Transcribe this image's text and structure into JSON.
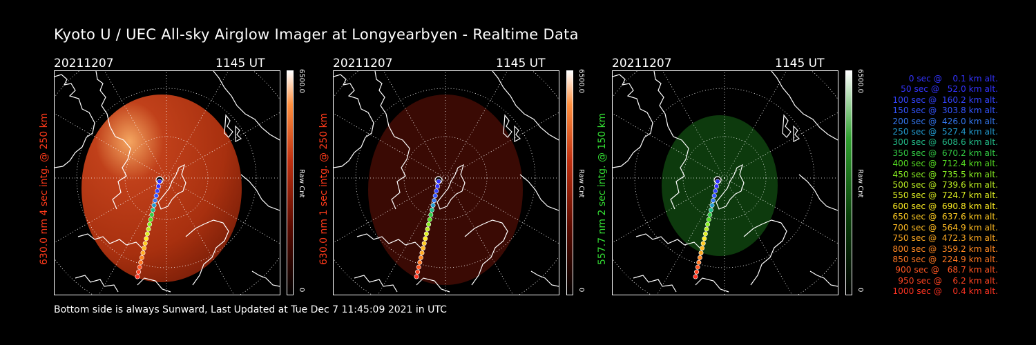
{
  "title": "Kyoto U / UEC All-sky Airglow Imager at Longyearbyen - Realtime Data",
  "panels": [
    {
      "date": "20211207",
      "time": "1145 UT",
      "label": "630.0 nm 4 sec intg. @ 250 km",
      "label_color": "#ff3a1a",
      "cbar_max": "6500.0",
      "cbar_unit": "Raw Cnt",
      "cbar_min": "0",
      "tint": "red"
    },
    {
      "date": "20211207",
      "time": "1145 UT",
      "label": "630.0 nm 1 sec intg. @ 250 km",
      "label_color": "#ff3a1a",
      "cbar_max": "6500.0",
      "cbar_unit": "Raw Cnt",
      "cbar_min": "0",
      "tint": "darkred"
    },
    {
      "date": "20211207",
      "time": "1145 UT",
      "label": "557.7 nm 2 sec intg. @ 150 km",
      "label_color": "#33dd33",
      "cbar_max": "6500.0",
      "cbar_unit": "Raw Cnt",
      "cbar_min": "0",
      "tint": "green"
    }
  ],
  "legend": [
    {
      "text": "0 sec @    0.1 km alt.",
      "color": "#3333ff"
    },
    {
      "text": "50 sec @   52.0 km alt.",
      "color": "#3333ff"
    },
    {
      "text": "100 sec @  160.2 km alt.",
      "color": "#3344ff"
    },
    {
      "text": "150 sec @  303.8 km alt.",
      "color": "#3355ff"
    },
    {
      "text": "200 sec @  426.0 km alt.",
      "color": "#3377ee"
    },
    {
      "text": "250 sec @  527.4 km alt.",
      "color": "#2299cc"
    },
    {
      "text": "300 sec @  608.6 km alt.",
      "color": "#22bb88"
    },
    {
      "text": "350 sec @  670.2 km alt.",
      "color": "#33cc44"
    },
    {
      "text": "400 sec @  712.4 km alt.",
      "color": "#55dd22"
    },
    {
      "text": "450 sec @  735.5 km alt.",
      "color": "#88ee22"
    },
    {
      "text": "500 sec @  739.6 km alt.",
      "color": "#bbee22"
    },
    {
      "text": "550 sec @  724.7 km alt.",
      "color": "#ddee22"
    },
    {
      "text": "600 sec @  690.8 km alt.",
      "color": "#ffee22"
    },
    {
      "text": "650 sec @  637.6 km alt.",
      "color": "#ffcc22"
    },
    {
      "text": "700 sec @  564.9 km alt.",
      "color": "#ffbb22"
    },
    {
      "text": "750 sec @  472.3 km alt.",
      "color": "#ffaa22"
    },
    {
      "text": "800 sec @  359.2 km alt.",
      "color": "#ff8822"
    },
    {
      "text": "850 sec @  224.9 km alt.",
      "color": "#ff7722"
    },
    {
      "text": "900 sec @   68.7 km alt.",
      "color": "#ff5522"
    },
    {
      "text": "950 sec @    6.2 km alt.",
      "color": "#ff4422"
    },
    {
      "text": "1000 sec @    0.4 km alt.",
      "color": "#ff3322"
    }
  ],
  "footer": "Bottom side is always Sunward, Last Updated at Tue Dec  7 11:45:09 2021 in UTC"
}
